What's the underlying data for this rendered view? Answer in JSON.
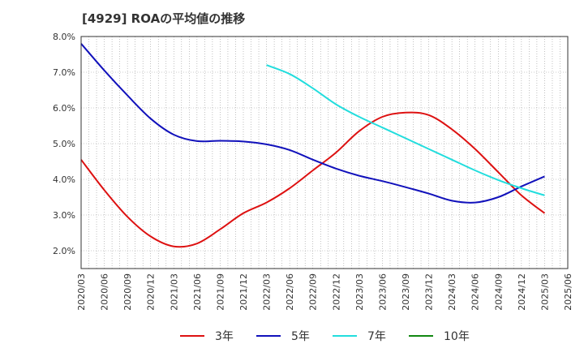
{
  "chart_data": {
    "type": "line",
    "title": "[4929]  ROAの平均値の推移",
    "xlabel": "",
    "ylabel": "",
    "ylim": [
      1.5,
      8.0
    ],
    "yticks": [
      2.0,
      3.0,
      4.0,
      5.0,
      6.0,
      7.0,
      8.0
    ],
    "ytick_labels": [
      "2.0%",
      "3.0%",
      "4.0%",
      "5.0%",
      "6.0%",
      "7.0%",
      "8.0%"
    ],
    "categories": [
      "2020/03",
      "2020/06",
      "2020/09",
      "2020/12",
      "2021/03",
      "2021/06",
      "2021/09",
      "2021/12",
      "2022/03",
      "2022/06",
      "2022/09",
      "2022/12",
      "2023/03",
      "2023/06",
      "2023/09",
      "2023/12",
      "2024/03",
      "2024/06",
      "2024/09",
      "2024/12",
      "2025/03",
      "2025/06"
    ],
    "grid": true,
    "legend_position": "bottom",
    "series": [
      {
        "name": "3年",
        "color": "#dd1111",
        "values": [
          4.55,
          3.7,
          2.95,
          2.4,
          2.12,
          2.2,
          2.6,
          3.05,
          3.35,
          3.75,
          4.25,
          4.75,
          5.35,
          5.75,
          5.87,
          5.8,
          5.4,
          4.85,
          4.2,
          3.55,
          3.05,
          null
        ]
      },
      {
        "name": "5年",
        "color": "#1111bb",
        "values": [
          7.8,
          7.05,
          6.35,
          5.7,
          5.25,
          5.07,
          5.08,
          5.06,
          4.98,
          4.82,
          4.55,
          4.3,
          4.1,
          3.95,
          3.78,
          3.6,
          3.4,
          3.35,
          3.5,
          3.8,
          4.08,
          null
        ]
      },
      {
        "name": "7年",
        "color": "#22dddd",
        "values": [
          null,
          null,
          null,
          null,
          null,
          null,
          null,
          null,
          7.2,
          6.95,
          6.55,
          6.1,
          5.75,
          5.45,
          5.15,
          4.85,
          4.55,
          4.25,
          3.98,
          3.75,
          3.55,
          null
        ]
      },
      {
        "name": "10年",
        "color": "#118811",
        "values": [
          null,
          null,
          null,
          null,
          null,
          null,
          null,
          null,
          null,
          null,
          null,
          null,
          null,
          null,
          null,
          null,
          null,
          null,
          null,
          null,
          null,
          null
        ]
      }
    ]
  }
}
